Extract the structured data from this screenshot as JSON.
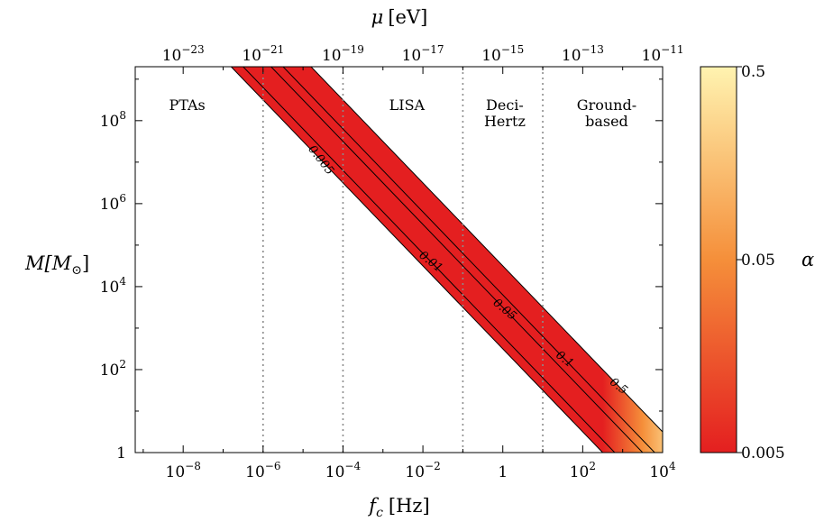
{
  "chart_data": {
    "type": "heatmap",
    "x_axis": {
      "label": "f_c [Hz]",
      "label_base": "f",
      "label_sub": "c",
      "label_unit": "[Hz]",
      "scale": "log",
      "range_log10": [
        -9.2,
        4.0
      ],
      "ticks": [
        {
          "log10": -8,
          "base": "10",
          "exp": "−8"
        },
        {
          "log10": -6,
          "base": "10",
          "exp": "−6"
        },
        {
          "log10": -4,
          "base": "10",
          "exp": "−4"
        },
        {
          "log10": -2,
          "base": "10",
          "exp": "−2"
        },
        {
          "log10": 0,
          "base": "1",
          "exp": ""
        },
        {
          "log10": 2,
          "base": "10",
          "exp": "2"
        },
        {
          "log10": 4,
          "base": "10",
          "exp": "4"
        }
      ]
    },
    "top_axis": {
      "label": "μ [eV]",
      "label_symbol": "μ",
      "label_unit": "[eV]",
      "scale": "log",
      "ticks": [
        {
          "log10": -23,
          "base": "10",
          "exp": "−23"
        },
        {
          "log10": -21,
          "base": "10",
          "exp": "−21"
        },
        {
          "log10": -19,
          "base": "10",
          "exp": "−19"
        },
        {
          "log10": -17,
          "base": "10",
          "exp": "−17"
        },
        {
          "log10": -15,
          "base": "10",
          "exp": "−15"
        },
        {
          "log10": -13,
          "base": "10",
          "exp": "−13"
        },
        {
          "log10": -11,
          "base": "10",
          "exp": "−11"
        }
      ]
    },
    "y_axis": {
      "label": "M[M⊙]",
      "label_base": "M[M",
      "label_sub": "⊙",
      "label_close": "]",
      "scale": "log",
      "range_log10": [
        0,
        9.3
      ],
      "ticks": [
        {
          "log10": 0,
          "base": "1",
          "exp": ""
        },
        {
          "log10": 2,
          "base": "10",
          "exp": "2"
        },
        {
          "log10": 4,
          "base": "10",
          "exp": "4"
        },
        {
          "log10": 6,
          "base": "10",
          "exp": "6"
        },
        {
          "log10": 8,
          "base": "10",
          "exp": "8"
        }
      ]
    },
    "colorbar": {
      "label": "α",
      "scale": "log",
      "min": 0.005,
      "max": 0.5,
      "ticks": [
        "0.5",
        "0.05",
        "0.005"
      ],
      "colors": [
        "#e41f20",
        "#f58f3a",
        "#fff3b0"
      ]
    },
    "band": {
      "alpha_min": 0.005,
      "alpha_max": 0.5,
      "relation": "log10(M) = -log10(f_c) + 2.5 + log10(alpha/0.005)"
    },
    "contours": [
      {
        "alpha": 0.005,
        "label": "0.005"
      },
      {
        "alpha": 0.01,
        "label": "0.01"
      },
      {
        "alpha": 0.05,
        "label": "0.05"
      },
      {
        "alpha": 0.1,
        "label": "0.1"
      },
      {
        "alpha": 0.5,
        "label": "0.5"
      }
    ],
    "region_boundaries_log10_f": [
      -6,
      -4,
      -1,
      1
    ],
    "regions": [
      {
        "lines": [
          "PTAs"
        ],
        "center_log10_f": -7.9
      },
      {
        "lines": [
          "LISA"
        ],
        "center_log10_f": -2.4
      },
      {
        "lines": [
          "Deci-",
          "Hertz"
        ],
        "center_log10_f": 0.05
      },
      {
        "lines": [
          "Ground-",
          "based"
        ],
        "center_log10_f": 2.6
      }
    ]
  }
}
